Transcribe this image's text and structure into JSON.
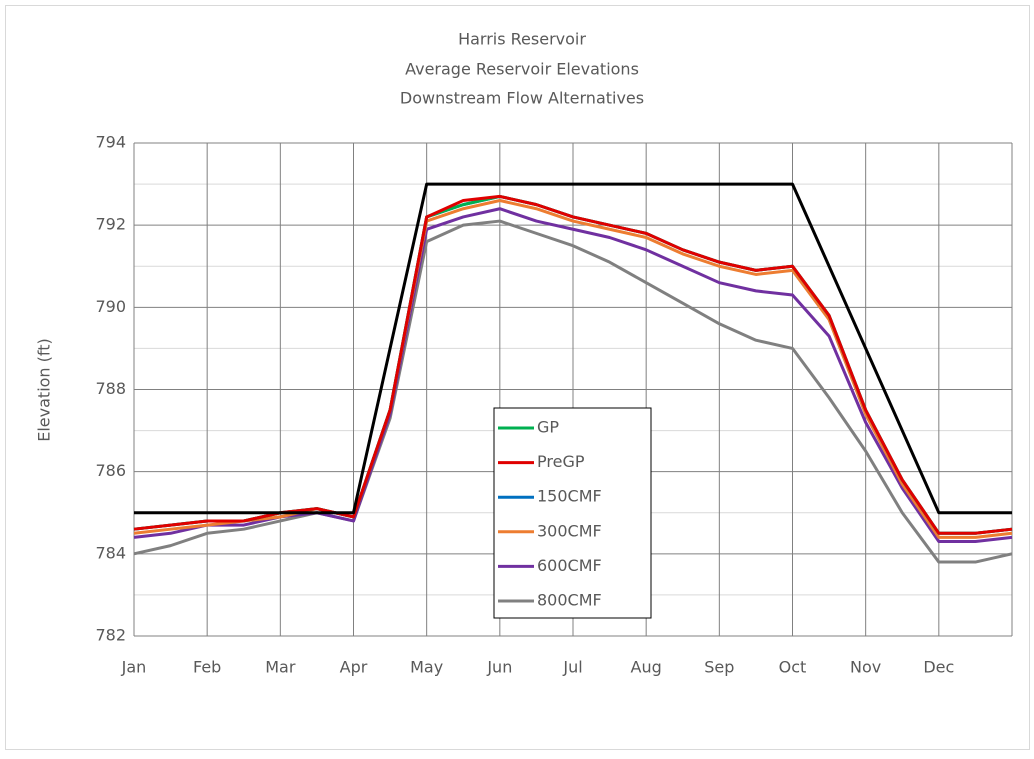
{
  "chart_data": {
    "type": "line",
    "title": "Harris Reservoir",
    "subtitle": [
      "Average Reservoir Elevations",
      "Downstream Flow Alternatives"
    ],
    "ylabel": "Elevation (ft)",
    "xlim": [
      0,
      12
    ],
    "xticks": [
      {
        "value": 0,
        "label": "Jan"
      },
      {
        "value": 1,
        "label": "Feb"
      },
      {
        "value": 2,
        "label": "Mar"
      },
      {
        "value": 3,
        "label": "Apr"
      },
      {
        "value": 4,
        "label": "May"
      },
      {
        "value": 5,
        "label": "Jun"
      },
      {
        "value": 6,
        "label": "Jul"
      },
      {
        "value": 7,
        "label": "Aug"
      },
      {
        "value": 8,
        "label": "Sep"
      },
      {
        "value": 9,
        "label": "Oct"
      },
      {
        "value": 10,
        "label": "Nov"
      },
      {
        "value": 11,
        "label": "Dec"
      }
    ],
    "ylim": [
      782,
      794
    ],
    "yticks": [
      782,
      784,
      786,
      788,
      790,
      792,
      794
    ],
    "yminor": [
      783,
      785,
      787,
      789,
      791,
      793
    ],
    "grid": true,
    "x": [
      0,
      0.5,
      1,
      1.5,
      2,
      2.5,
      3,
      3.5,
      4,
      4.5,
      5,
      5.5,
      6,
      6.5,
      7,
      7.5,
      8,
      8.5,
      9,
      9.5,
      10,
      10.5,
      11,
      11.5,
      12
    ],
    "series": [
      {
        "name": "800CMF",
        "color": "#808080",
        "values": [
          784.0,
          784.2,
          784.5,
          784.6,
          784.8,
          785.0,
          784.8,
          787.3,
          791.6,
          792.0,
          792.1,
          791.8,
          791.5,
          791.1,
          790.6,
          790.1,
          789.6,
          789.2,
          789.0,
          787.8,
          786.5,
          785.0,
          783.8,
          783.8,
          784.0
        ]
      },
      {
        "name": "600CMF",
        "color": "#7030a0",
        "values": [
          784.4,
          784.5,
          784.7,
          784.7,
          784.9,
          785.0,
          784.8,
          787.4,
          791.9,
          792.2,
          792.4,
          792.1,
          791.9,
          791.7,
          791.4,
          791.0,
          790.6,
          790.4,
          790.3,
          789.3,
          787.2,
          785.6,
          784.3,
          784.3,
          784.4
        ]
      },
      {
        "name": "300CMF",
        "color": "#ed7d31",
        "values": [
          784.5,
          784.6,
          784.7,
          784.8,
          784.9,
          785.1,
          784.9,
          787.5,
          792.1,
          792.4,
          792.6,
          792.4,
          792.1,
          791.9,
          791.7,
          791.3,
          791.0,
          790.8,
          790.9,
          789.7,
          787.4,
          785.7,
          784.4,
          784.4,
          784.5
        ]
      },
      {
        "name": "150CMF",
        "color": "#0070c0",
        "values": [
          784.6,
          784.7,
          784.8,
          784.8,
          785.0,
          785.1,
          784.9,
          787.5,
          792.2,
          792.5,
          792.7,
          792.5,
          792.2,
          792.0,
          791.8,
          791.4,
          791.1,
          790.9,
          791.0,
          789.8,
          787.5,
          785.8,
          784.5,
          784.5,
          784.6
        ]
      },
      {
        "name": "GP",
        "color": "#00b050",
        "values": [
          784.6,
          784.7,
          784.8,
          784.8,
          785.0,
          785.1,
          784.9,
          787.5,
          792.2,
          792.5,
          792.7,
          792.5,
          792.2,
          792.0,
          791.8,
          791.4,
          791.1,
          790.9,
          791.0,
          789.8,
          787.5,
          785.8,
          784.5,
          784.5,
          784.6
        ]
      },
      {
        "name": "PreGP",
        "color": "#e00000",
        "values": [
          784.6,
          784.7,
          784.8,
          784.8,
          785.0,
          785.1,
          784.9,
          787.5,
          792.2,
          792.6,
          792.7,
          792.5,
          792.2,
          792.0,
          791.8,
          791.4,
          791.1,
          790.9,
          791.0,
          789.8,
          787.5,
          785.8,
          784.5,
          784.5,
          784.6
        ]
      },
      {
        "color": "#000000",
        "x": [
          0,
          3,
          4,
          9,
          11,
          12
        ],
        "values": [
          785,
          785,
          793,
          793,
          785,
          785
        ]
      }
    ],
    "legend_order": [
      4,
      5,
      3,
      2,
      1,
      0
    ]
  }
}
